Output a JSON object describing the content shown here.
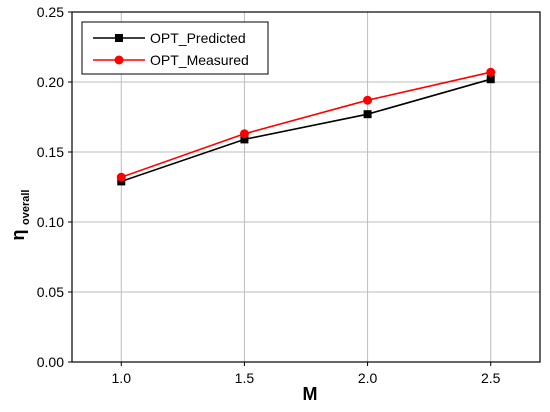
{
  "chart_data": {
    "type": "line",
    "xlabel": "M",
    "ylabel_main": "η",
    "ylabel_sub": "overall",
    "x": [
      1.0,
      1.5,
      2.0,
      2.5
    ],
    "x_ticks": [
      "1.0",
      "1.5",
      "2.0",
      "2.5"
    ],
    "xlim": [
      0.8,
      2.7
    ],
    "y_ticks": [
      "0.00",
      "0.05",
      "0.10",
      "0.15",
      "0.20",
      "0.25"
    ],
    "ylim": [
      0,
      0.25
    ],
    "grid": true,
    "legend_position": "top-left",
    "series": [
      {
        "name": "OPT_Predicted",
        "values": [
          0.129,
          0.159,
          0.177,
          0.202
        ],
        "color": "#000000",
        "marker": "square"
      },
      {
        "name": "OPT_Measured",
        "values": [
          0.132,
          0.163,
          0.187,
          0.207
        ],
        "color": "#ff0000",
        "marker": "circle"
      }
    ]
  }
}
